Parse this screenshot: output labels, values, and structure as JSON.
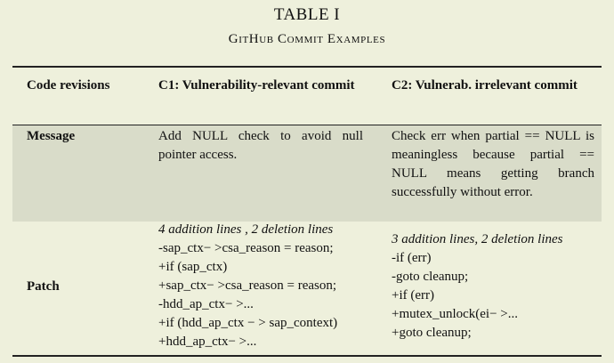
{
  "table": {
    "label": "TABLE I",
    "title": "GitHub Commit Examples",
    "headers": [
      "Code revisions",
      "C1: Vulnerability-relevant commit",
      "C2: Vulnerab. irrelevant commit"
    ],
    "rows": {
      "message": {
        "label": "Message",
        "c1": "Add NULL check to avoid null pointer access.",
        "c2": "Check err when partial == NULL is meaningless because partial == NULL means getting branch successfully without error."
      },
      "patch": {
        "label": "Patch",
        "c1_lines": [
          "4 addition lines , 2 deletion lines",
          "-sap_ctx− >csa_reason = reason;",
          "+if (sap_ctx)",
          "+sap_ctx− >csa_reason = reason;",
          "-hdd_ap_ctx− >...",
          "+if (hdd_ap_ctx − > sap_context)",
          "+hdd_ap_ctx− >..."
        ],
        "c2_lines": [
          "3 addition lines, 2 deletion lines",
          "-if (err)",
          "-goto cleanup;",
          "+if (err)",
          "+mutex_unlock(ei− >...",
          "+goto cleanup;"
        ]
      }
    }
  }
}
